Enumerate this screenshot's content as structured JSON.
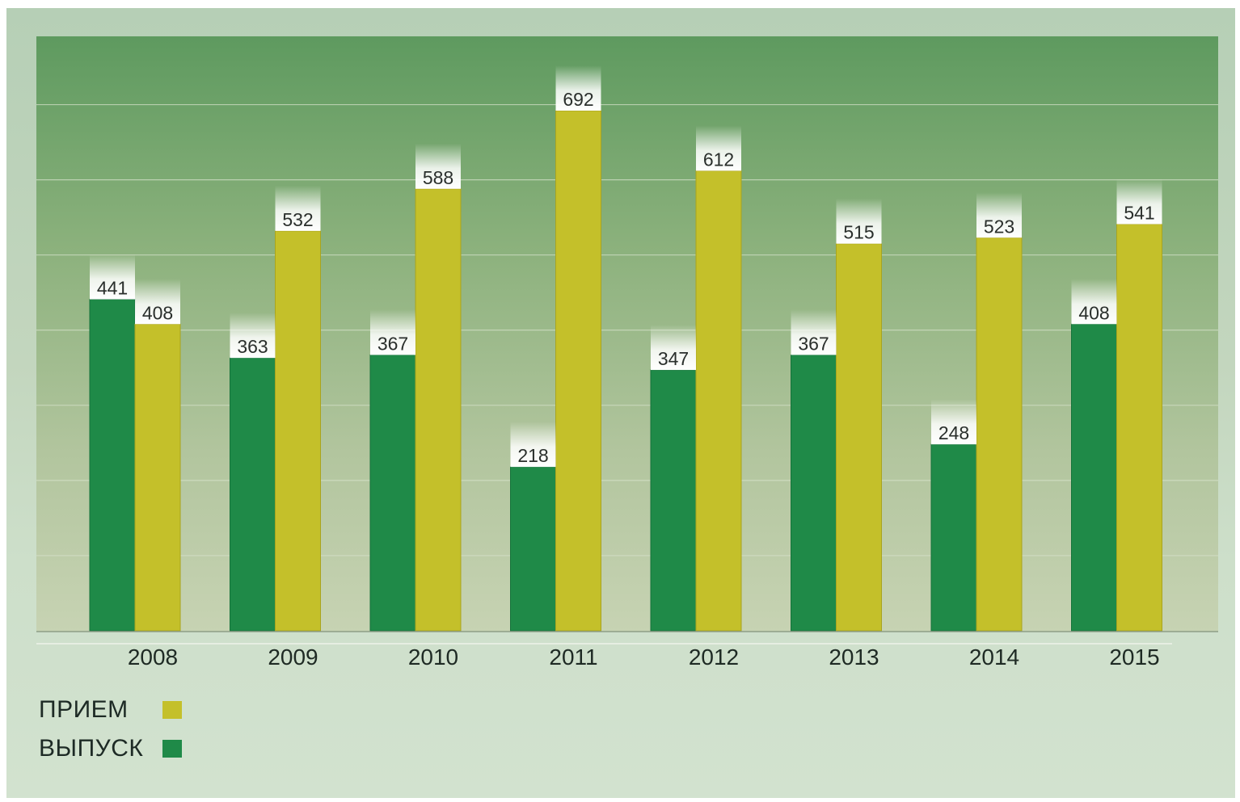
{
  "chart_data": {
    "type": "bar",
    "categories": [
      "2008",
      "2009",
      "2010",
      "2011",
      "2012",
      "2013",
      "2014",
      "2015"
    ],
    "series": [
      {
        "name": "ВЫПУСК",
        "color": "#1f8a48",
        "values": [
          441,
          363,
          367,
          218,
          347,
          367,
          248,
          408
        ]
      },
      {
        "name": "ПРИЕМ",
        "color": "#c4c02a",
        "values": [
          408,
          532,
          588,
          692,
          612,
          515,
          523,
          541
        ]
      }
    ],
    "title": "",
    "xlabel": "",
    "ylabel": "",
    "ylim": [
      0,
      800
    ],
    "grid": true,
    "legend_position": "bottom-left"
  },
  "legend": [
    {
      "label": "ПРИЕМ",
      "color": "#c4c02a"
    },
    {
      "label": "ВЫПУСК",
      "color": "#1f8a48"
    }
  ]
}
